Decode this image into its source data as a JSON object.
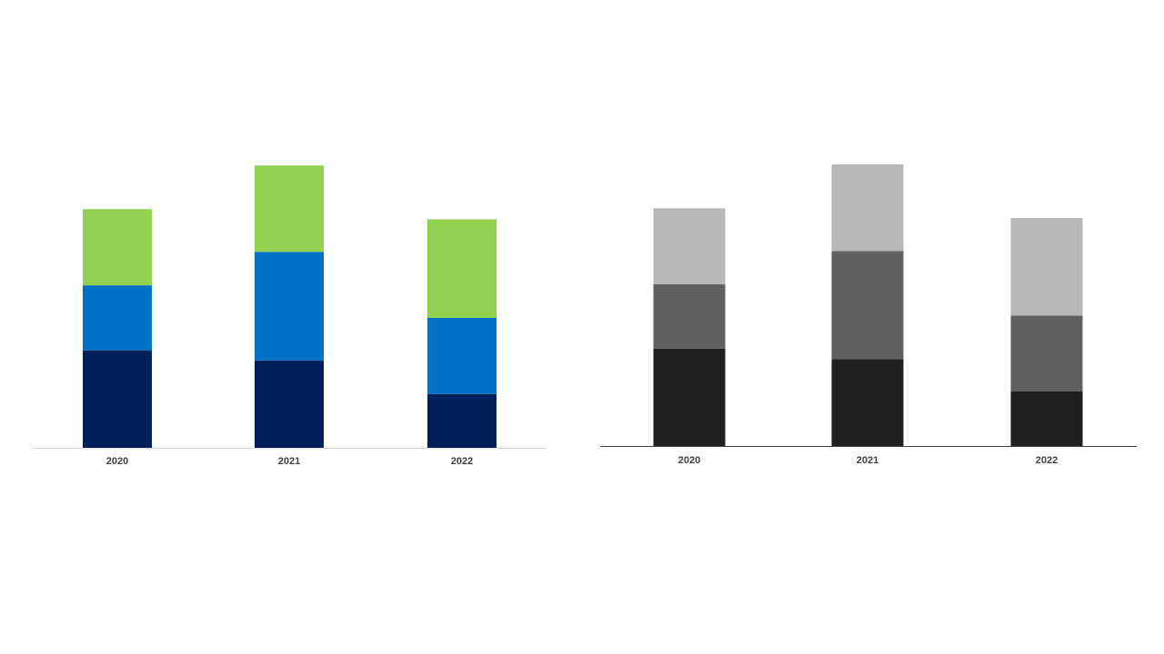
{
  "chart_data": [
    {
      "type": "bar",
      "stacked": true,
      "categories": [
        "2020",
        "2021",
        "2022"
      ],
      "series": [
        {
          "color": "#00205b",
          "values": [
            96,
            86,
            53
          ]
        },
        {
          "color": "#0072c6",
          "values": [
            64,
            107,
            75
          ]
        },
        {
          "color": "#92d050",
          "values": [
            75,
            85,
            97
          ]
        }
      ],
      "title": "",
      "xlabel": "",
      "ylabel": "",
      "ylim": [
        0,
        280
      ],
      "grid": false,
      "legend": "none",
      "baseline_color": "#d9d9d9"
    },
    {
      "type": "bar",
      "stacked": true,
      "categories": [
        "2020",
        "2021",
        "2022"
      ],
      "series": [
        {
          "color": "#1f1f1f",
          "values": [
            100,
            89,
            56
          ]
        },
        {
          "color": "#606060",
          "values": [
            66,
            111,
            78
          ]
        },
        {
          "color": "#b7b7b7",
          "values": [
            78,
            89,
            100
          ]
        }
      ],
      "title": "",
      "xlabel": "",
      "ylabel": "",
      "ylim": [
        0,
        290
      ],
      "grid": false,
      "legend": "none",
      "baseline_color": "#404040"
    }
  ]
}
